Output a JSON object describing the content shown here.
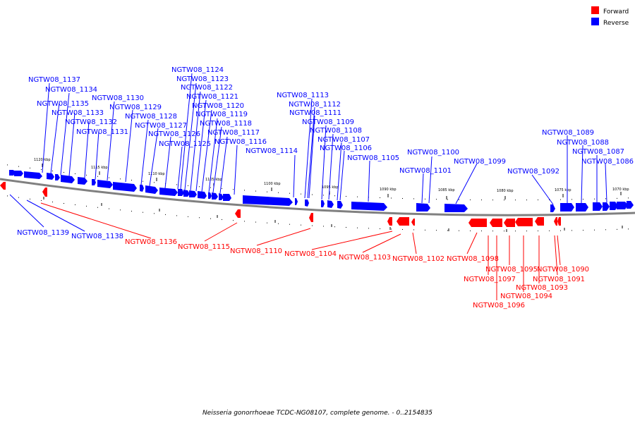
{
  "legend": {
    "forward": {
      "label": "Forward",
      "color": "#ff0000"
    },
    "reverse": {
      "label": "Reverse",
      "color": "#0000ff"
    }
  },
  "axis_ticks": [
    "1120 kbp",
    "1115 kbp",
    "1110 kbp",
    "1105 kbp",
    "1100 kbp",
    "1095 kbp",
    "1090 kbp",
    "1085 kbp",
    "1080 kbp",
    "1075 kbp",
    "1070 kbp"
  ],
  "reverse_genes": [
    {
      "name": "NGTW08_1137"
    },
    {
      "name": "NGTW08_1134"
    },
    {
      "name": "NGTW08_1135"
    },
    {
      "name": "NGTW08_1133"
    },
    {
      "name": "NGTW08_1132"
    },
    {
      "name": "NGTW08_1131"
    },
    {
      "name": "NGTW08_1130"
    },
    {
      "name": "NGTW08_1129"
    },
    {
      "name": "NGTW08_1128"
    },
    {
      "name": "NGTW08_1127"
    },
    {
      "name": "NGTW08_1126"
    },
    {
      "name": "NGTW08_1125"
    },
    {
      "name": "NGTW08_1124"
    },
    {
      "name": "NGTW08_1123"
    },
    {
      "name": "NGTW08_1122"
    },
    {
      "name": "NGTW08_1121"
    },
    {
      "name": "NGTW08_1120"
    },
    {
      "name": "NGTW08_1119"
    },
    {
      "name": "NGTW08_1118"
    },
    {
      "name": "NGTW08_1117"
    },
    {
      "name": "NGTW08_1116"
    },
    {
      "name": "NGTW08_1114"
    },
    {
      "name": "NGTW08_1113"
    },
    {
      "name": "NGTW08_1112"
    },
    {
      "name": "NGTW08_1111"
    },
    {
      "name": "NGTW08_1109"
    },
    {
      "name": "NGTW08_1108"
    },
    {
      "name": "NGTW08_1107"
    },
    {
      "name": "NGTW08_1106"
    },
    {
      "name": "NGTW08_1105"
    },
    {
      "name": "NGTW08_1100"
    },
    {
      "name": "NGTW08_1101"
    },
    {
      "name": "NGTW08_1099"
    },
    {
      "name": "NGTW08_1092"
    },
    {
      "name": "NGTW08_1089"
    },
    {
      "name": "NGTW08_1088"
    },
    {
      "name": "NGTW08_1087"
    },
    {
      "name": "NGTW08_1086"
    },
    {
      "name": "NGTW08_1139"
    },
    {
      "name": "NGTW08_1138"
    }
  ],
  "forward_genes": [
    {
      "name": "NGTW08_1136"
    },
    {
      "name": "NGTW08_1115"
    },
    {
      "name": "NGTW08_1110"
    },
    {
      "name": "NGTW08_1104"
    },
    {
      "name": "NGTW08_1103"
    },
    {
      "name": "NGTW08_1102"
    },
    {
      "name": "NGTW08_1098"
    },
    {
      "name": "NGTW08_1095"
    },
    {
      "name": "NGTW08_1097"
    },
    {
      "name": "NGTW08_1096"
    },
    {
      "name": "NGTW08_1090"
    },
    {
      "name": "NGTW08_1091"
    },
    {
      "name": "NGTW08_1093"
    },
    {
      "name": "NGTW08_1094"
    }
  ],
  "footer_caption": "Neisseria gonorrhoeae TCDC-NG08107, complete genome. - 0..2154835"
}
